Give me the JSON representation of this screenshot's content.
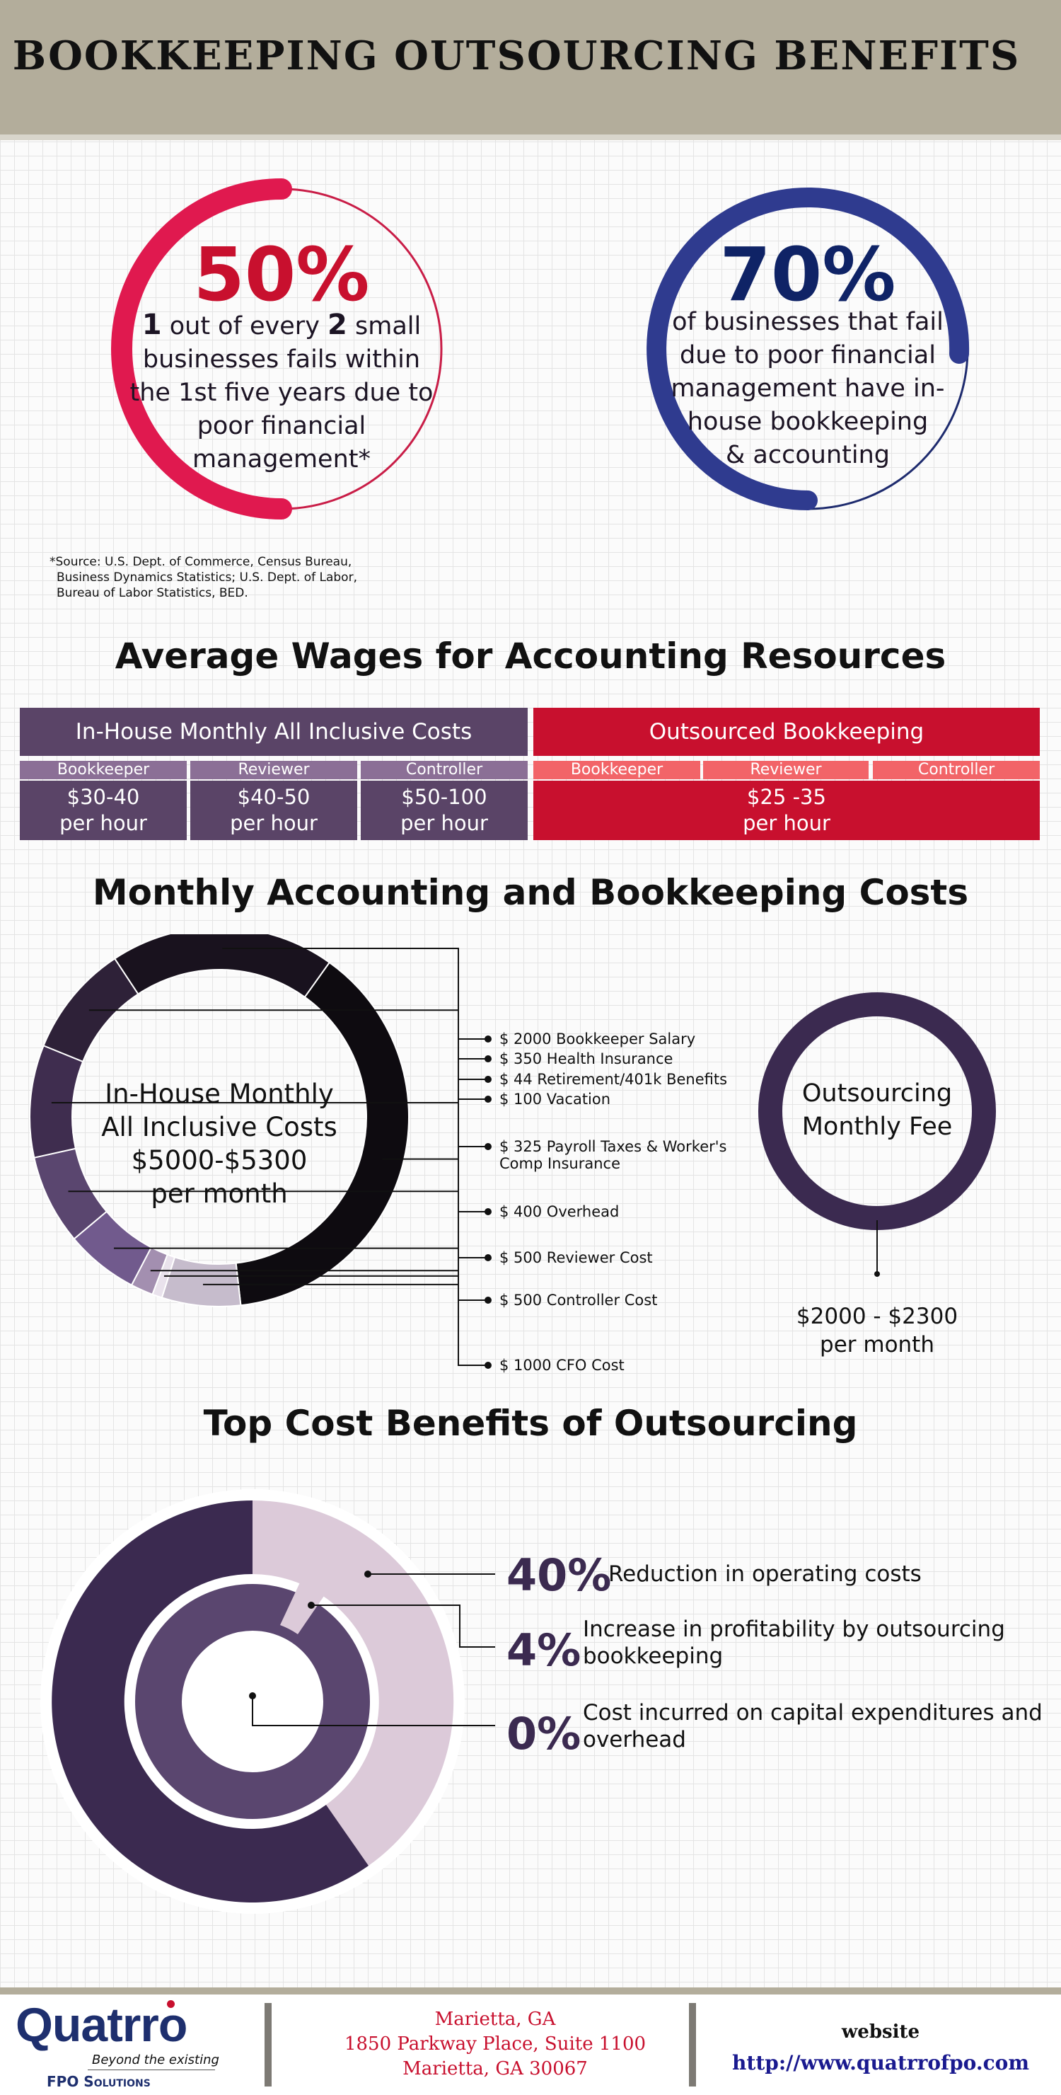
{
  "header": {
    "title": "BOOKKEEPING  OUTSOURCING  BENEFITS"
  },
  "stats": [
    {
      "pct": "50%",
      "line1_num1": "1",
      "line1_mid": " out of every ",
      "line1_num2": "2",
      "line1_end": " small",
      "rest": [
        "businesses fails within",
        "the 1st five years due to",
        "poor financial",
        "management*"
      ],
      "color": "#e0194f"
    },
    {
      "pct": "70%",
      "lines": [
        "of businesses that fail",
        "due to poor financial",
        "management have in-",
        "house bookkeeping",
        "& accounting"
      ],
      "color": "#2f3b8f"
    }
  ],
  "source": [
    "*Source: U.S. Dept. of Commerce, Census Bureau,",
    "Business Dynamics Statistics; U.S. Dept. of Labor,",
    "Bureau of Labor Statistics, BED."
  ],
  "wages": {
    "title": "Average Wages for Accounting Resources",
    "inhouse_header": "In-House Monthly All Inclusive Costs",
    "outsourced_header": "Outsourced Bookkeeping",
    "roles": [
      "Bookkeeper",
      "Reviewer",
      "Controller"
    ],
    "inhouse_rates": [
      [
        "$30-40",
        "per hour"
      ],
      [
        "$40-50",
        "per hour"
      ],
      [
        "$50-100",
        "per hour"
      ]
    ],
    "outsourced_rate": [
      "$25 -35",
      "per hour"
    ]
  },
  "monthly": {
    "title": "Monthly Accounting and Bookkeeping Costs",
    "center": [
      "In-House Monthly",
      "All Inclusive Costs",
      "$5000-$5300",
      "per month"
    ],
    "items": [
      {
        "label": "$ 2000 Bookkeeper Salary",
        "value": 2000,
        "color": "#0e0b10"
      },
      {
        "label": "$ 350 Health Insurance",
        "value": 350,
        "color": "#c6bccc"
      },
      {
        "label": "$ 44 Retirement/401k Benefits",
        "value": 44,
        "color": "#e9e2ec"
      },
      {
        "label": "$ 100 Vacation",
        "value": 100,
        "color": "#a38fb0"
      },
      {
        "label": "$ 325 Payroll Taxes & Worker's",
        "label2": "Comp Insurance",
        "value": 325,
        "color": "#715a8d"
      },
      {
        "label": "$ 400 Overhead",
        "value": 400,
        "color": "#5a466f"
      },
      {
        "label": "$ 500 Reviewer Cost",
        "value": 500,
        "color": "#3f2d4f"
      },
      {
        "label": "$ 500 Controller Cost",
        "value": 500,
        "color": "#2e2138"
      },
      {
        "label": "$ 1000 CFO Cost",
        "value": 1000,
        "color": "#19121e"
      }
    ],
    "outsourcing_center": [
      "Outsourcing",
      "Monthly Fee"
    ],
    "outsourcing_fee": [
      "$2000 - $2300",
      "per month"
    ]
  },
  "benefits": {
    "title": "Top Cost Benefits of Outsourcing",
    "items": [
      {
        "pct": "40%",
        "text": [
          "Reduction in operating costs"
        ]
      },
      {
        "pct": "4%",
        "text": [
          "Increase in profitability by outsourcing",
          "bookkeeping"
        ]
      },
      {
        "pct": "0%",
        "text": [
          "Cost incurred on capital expenditures and",
          "overhead"
        ]
      }
    ]
  },
  "footer": {
    "logo_text": "Quatrro",
    "logo_tagline": "Beyond the existing",
    "logo_sub": "FPO Solutions",
    "address": [
      "Marietta, GA",
      "1850 Parkway Place, Suite 1100",
      "Marietta, GA 30067"
    ],
    "website_label": "website",
    "website_url": "http://www.quatrrofpo.com"
  },
  "colors": {
    "inhouse": "#5a4467",
    "inhouse_sub": "#8b6f96",
    "outsourced": "#c8102e",
    "outsourced_sub": "#f26468"
  }
}
